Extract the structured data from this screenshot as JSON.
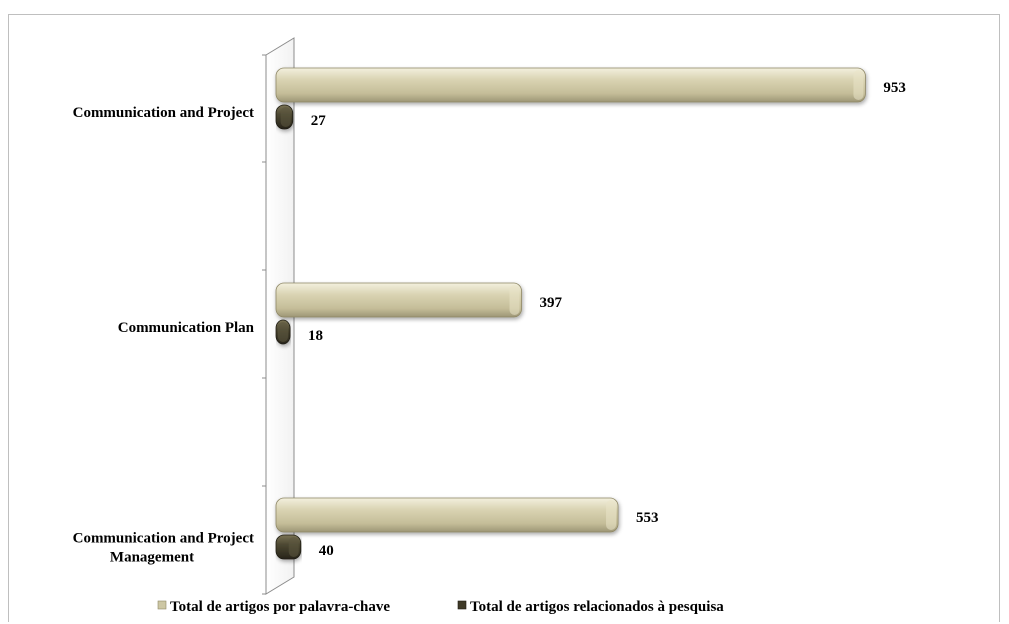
{
  "chart_data": {
    "type": "bar",
    "orientation": "horizontal",
    "categories": [
      "Communication and Project",
      "Communication Plan",
      "Communication and Project Management"
    ],
    "category_label_lines": [
      [
        "Communication and Project"
      ],
      [
        "Communication Plan"
      ],
      [
        "Communication and Project",
        "Management"
      ]
    ],
    "series": [
      {
        "name": "Total de artigos por palavra-chave",
        "values": [
          953,
          397,
          553
        ],
        "color": "#cdc7a4"
      },
      {
        "name": "Total de artigos relacionados à pesquisa",
        "values": [
          27,
          18,
          40
        ],
        "color": "#4a4530"
      }
    ],
    "data_labels": true,
    "legend": "bottom",
    "grid": false,
    "xlim": [
      0,
      1000
    ]
  }
}
